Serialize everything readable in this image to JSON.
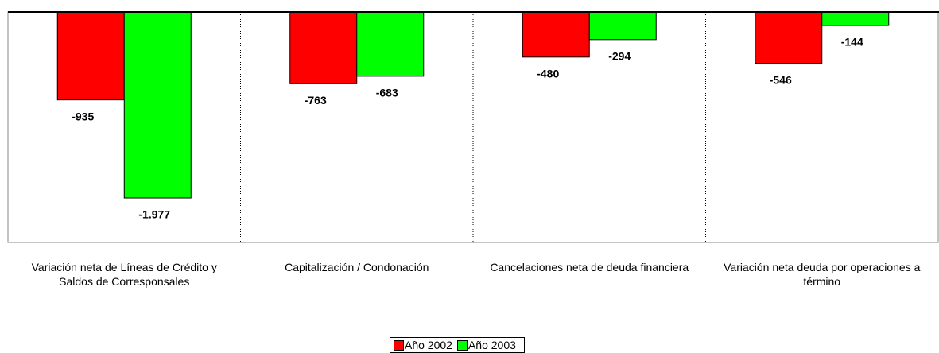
{
  "chart_data": {
    "type": "bar",
    "categories": [
      "Variación neta de Líneas de Crédito y Saldos de Corresponsales",
      "Capitalización / Condonación",
      "Cancelaciones neta de deuda financiera",
      "Variación neta deuda por operaciones a término"
    ],
    "series": [
      {
        "name": "Año 2002",
        "color": "#ff0000",
        "values": [
          -935,
          -763,
          -480,
          -546
        ]
      },
      {
        "name": "Año 2003",
        "color": "#00ff00",
        "values": [
          -1977,
          -683,
          -294,
          -144
        ],
        "value_labels": [
          "-1.977",
          "-683",
          "-294",
          "-144"
        ]
      }
    ],
    "ylim": [
      -2450,
      0
    ],
    "legend": "bottom"
  }
}
